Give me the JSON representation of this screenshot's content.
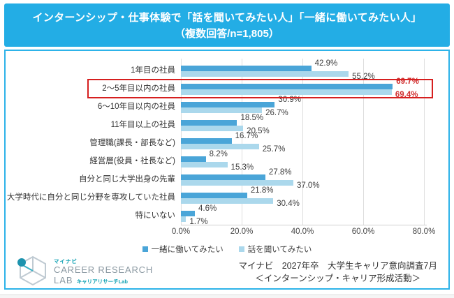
{
  "title": {
    "line1": "インターンシップ・仕事体験で「話を聞いてみたい人」「一緒に働いてみたい人」",
    "line2": "（複数回答/n=1,805）"
  },
  "chart_data": {
    "type": "bar",
    "orientation": "horizontal",
    "title": "インターンシップ・仕事体験で「話を聞いてみたい人」「一緒に働いてみたい人」（複数回答/n=1,805）",
    "categories": [
      "1年目の社員",
      "2～5年目以内の社員",
      "6～10年目以内の社員",
      "11年目以上の社員",
      "管理職(課長・部長など)",
      "経営層(役員・社長など)",
      "自分と同じ大学出身の先輩",
      "大学時代に自分と同じ分野を専攻していた社員",
      "特にいない"
    ],
    "series": [
      {
        "key": "work-together",
        "name": "一緒に働いてみたい",
        "color": "#4aa5d8",
        "values": [
          42.9,
          69.7,
          30.9,
          18.5,
          16.7,
          8.2,
          27.8,
          21.8,
          4.6
        ]
      },
      {
        "key": "hear-talk",
        "name": "話を聞いてみたい",
        "color": "#abd8ec",
        "values": [
          55.2,
          69.4,
          26.7,
          20.5,
          25.7,
          15.3,
          37.0,
          30.4,
          1.7
        ]
      }
    ],
    "value_suffix": "%",
    "xlim": [
      0,
      80
    ],
    "x_ticks": [
      "0.0%",
      "20.0%",
      "40.0%",
      "60.0%",
      "80.0%"
    ],
    "grid": true,
    "legend_position": "bottom",
    "highlight": {
      "category_index": 1,
      "box_color": "#d61f1f",
      "value_color": "#d02e2e"
    }
  },
  "legend": {
    "item1": "一緒に働いてみたい",
    "item2": "話を聞いてみたい"
  },
  "footer": {
    "source_line1": "マイナビ　2027年卒　大学生キャリア意向調査7月",
    "source_line2": "＜インターンシップ・キャリア形成活動＞"
  },
  "logo": {
    "brand": "マイナビ",
    "line1": "CAREER RESEARCH",
    "line2": "LAB",
    "sub": "キャリアリサーチLab"
  },
  "colors": {
    "title_bar": "#23ade5",
    "panel_border": "#2db3e9",
    "bar_dark": "#4aa5d8",
    "bar_light": "#abd8ec",
    "highlight_red": "#d61f1f",
    "grid": "#dedede",
    "text": "#333333"
  }
}
